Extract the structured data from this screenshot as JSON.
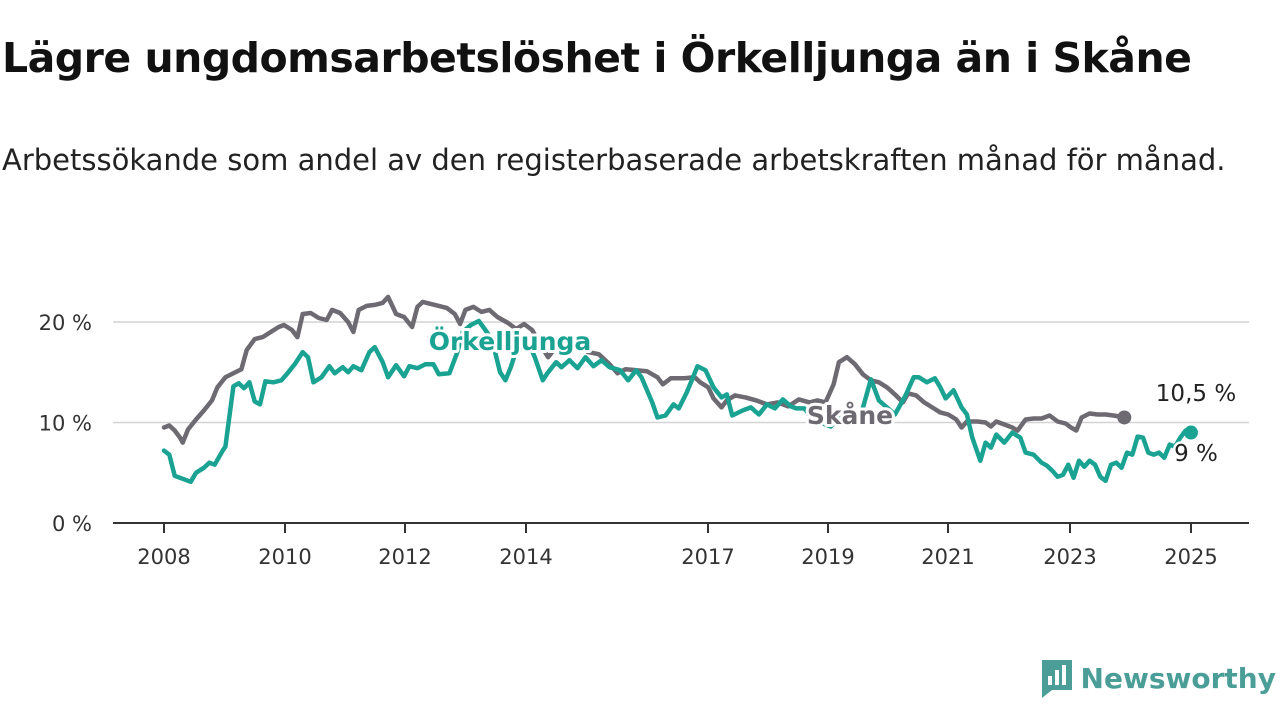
{
  "title": "Lägre ungdomsarbetslöshet i Örkelljunga än i Skåne",
  "subtitle": "Arbetssökande som andel av den registerbaserade arbetskraften månad för månad.",
  "brand": {
    "name": "Newsworthy",
    "icon": "newsworthy-logo-icon",
    "color": "#4a9e97"
  },
  "chart_data": {
    "type": "line",
    "title": "Lägre ungdomsarbetslöshet i Örkelljunga än i Skåne",
    "subtitle": "Arbetssökande som andel av den registerbaserade arbetskraften månad för månad.",
    "xlabel": "",
    "ylabel": "",
    "x_ticks": [
      "2008",
      "2010",
      "2012",
      "2014",
      "2017",
      "2019",
      "2021",
      "2023",
      "2025"
    ],
    "y_ticks": [
      "0 %",
      "10 %",
      "20 %"
    ],
    "ylim": [
      0,
      25
    ],
    "grid": true,
    "series": [
      {
        "name": "Skåne",
        "color": "#6e6a72",
        "end_label": "10,5 %",
        "points": [
          [
            2008.0,
            9.5
          ],
          [
            2008.1,
            9.7
          ],
          [
            2008.2,
            9.2
          ],
          [
            2008.3,
            8.5
          ],
          [
            2008.35,
            8.0
          ],
          [
            2008.45,
            9.3
          ],
          [
            2008.6,
            10.3
          ],
          [
            2008.75,
            11.2
          ],
          [
            2008.9,
            12.2
          ],
          [
            2009.0,
            13.5
          ],
          [
            2009.15,
            14.5
          ],
          [
            2009.3,
            14.9
          ],
          [
            2009.45,
            15.3
          ],
          [
            2009.55,
            17.2
          ],
          [
            2009.7,
            18.3
          ],
          [
            2009.85,
            18.5
          ],
          [
            2010.0,
            19.0
          ],
          [
            2010.15,
            19.5
          ],
          [
            2010.25,
            19.7
          ],
          [
            2010.4,
            19.2
          ],
          [
            2010.5,
            18.5
          ],
          [
            2010.6,
            20.8
          ],
          [
            2010.75,
            20.9
          ],
          [
            2010.9,
            20.4
          ],
          [
            2011.05,
            20.2
          ],
          [
            2011.15,
            21.2
          ],
          [
            2011.3,
            20.9
          ],
          [
            2011.45,
            20.0
          ],
          [
            2011.55,
            19.0
          ],
          [
            2011.65,
            21.2
          ],
          [
            2011.8,
            21.6
          ],
          [
            2011.95,
            21.7
          ],
          [
            2012.1,
            21.9
          ],
          [
            2012.2,
            22.5
          ],
          [
            2012.35,
            20.8
          ],
          [
            2012.5,
            20.5
          ],
          [
            2012.65,
            19.5
          ],
          [
            2012.75,
            21.5
          ],
          [
            2012.85,
            22.0
          ],
          [
            2013.0,
            21.8
          ],
          [
            2013.15,
            21.6
          ],
          [
            2013.3,
            21.4
          ],
          [
            2013.45,
            20.8
          ],
          [
            2013.55,
            19.8
          ],
          [
            2013.65,
            21.2
          ],
          [
            2013.8,
            21.5
          ],
          [
            2013.95,
            21.0
          ],
          [
            2014.1,
            21.2
          ],
          [
            2014.25,
            20.5
          ],
          [
            2014.45,
            19.9
          ],
          [
            2014.6,
            19.3
          ],
          [
            2014.75,
            19.8
          ],
          [
            2014.9,
            19.2
          ],
          [
            2015.05,
            17.8
          ],
          [
            2015.2,
            16.5
          ],
          [
            2015.35,
            17.5
          ],
          [
            2015.5,
            17.8
          ],
          [
            2015.65,
            17.3
          ],
          [
            2015.8,
            17.5
          ],
          [
            2015.95,
            17.0
          ],
          [
            2016.15,
            16.8
          ],
          [
            2016.35,
            15.8
          ],
          [
            2016.5,
            14.9
          ],
          [
            2016.65,
            15.3
          ],
          [
            2016.85,
            15.2
          ],
          [
            2017.05,
            15.1
          ],
          [
            2017.25,
            14.5
          ],
          [
            2017.35,
            13.8
          ],
          [
            2017.5,
            14.4
          ],
          [
            2017.75,
            14.4
          ],
          [
            2017.95,
            14.5
          ],
          [
            2018.05,
            14.0
          ],
          [
            2018.2,
            13.5
          ],
          [
            2018.3,
            12.4
          ],
          [
            2018.45,
            11.5
          ],
          [
            2018.55,
            12.2
          ],
          [
            2018.7,
            12.7
          ],
          [
            2018.9,
            12.5
          ],
          [
            2019.1,
            12.2
          ],
          [
            2019.3,
            11.8
          ],
          [
            2019.5,
            12.0
          ],
          [
            2019.7,
            11.6
          ],
          [
            2019.9,
            12.3
          ],
          [
            2020.1,
            12.0
          ],
          [
            2020.25,
            12.2
          ],
          [
            2020.4,
            12.0
          ],
          [
            2020.55,
            13.8
          ],
          [
            2020.65,
            16.0
          ],
          [
            2020.8,
            16.5
          ],
          [
            2020.95,
            15.8
          ],
          [
            2021.1,
            14.8
          ],
          [
            2021.25,
            14.2
          ],
          [
            2021.4,
            14.0
          ],
          [
            2021.55,
            13.5
          ],
          [
            2021.7,
            12.8
          ],
          [
            2021.85,
            12.0
          ],
          [
            2021.95,
            12.9
          ],
          [
            2022.1,
            12.7
          ],
          [
            2022.25,
            12.0
          ],
          [
            2022.4,
            11.5
          ],
          [
            2022.55,
            11.0
          ],
          [
            2022.7,
            10.8
          ],
          [
            2022.85,
            10.3
          ],
          [
            2022.95,
            9.5
          ],
          [
            2023.05,
            10.1
          ],
          [
            2023.25,
            10.1
          ],
          [
            2023.4,
            10.0
          ],
          [
            2023.5,
            9.6
          ],
          [
            2023.6,
            10.1
          ],
          [
            2023.75,
            9.8
          ],
          [
            2023.9,
            9.5
          ],
          [
            2024.0,
            9.2
          ],
          [
            2024.15,
            10.3
          ],
          [
            2024.3,
            10.4
          ],
          [
            2024.45,
            10.4
          ],
          [
            2024.6,
            10.7
          ],
          [
            2024.75,
            10.1
          ],
          [
            2024.9,
            9.9
          ],
          [
            2025.0,
            9.5
          ],
          [
            2025.1,
            9.2
          ],
          [
            2025.2,
            10.5
          ],
          [
            2025.35,
            10.9
          ],
          [
            2025.5,
            10.8
          ],
          [
            2025.65,
            10.8
          ],
          [
            2025.8,
            10.7
          ],
          [
            2026.0,
            10.5
          ]
        ]
      },
      {
        "name": "Örkelljunga",
        "color": "#1aa393",
        "end_label": "9 %",
        "points": [
          [
            2008.0,
            7.2
          ],
          [
            2008.1,
            6.8
          ],
          [
            2008.2,
            4.7
          ],
          [
            2008.35,
            4.4
          ],
          [
            2008.5,
            4.1
          ],
          [
            2008.6,
            5.0
          ],
          [
            2008.75,
            5.5
          ],
          [
            2008.85,
            6.0
          ],
          [
            2008.95,
            5.8
          ],
          [
            2009.1,
            7.2
          ],
          [
            2009.15,
            7.6
          ],
          [
            2009.3,
            13.6
          ],
          [
            2009.4,
            13.9
          ],
          [
            2009.5,
            13.4
          ],
          [
            2009.6,
            14.0
          ],
          [
            2009.7,
            12.1
          ],
          [
            2009.8,
            11.8
          ],
          [
            2009.9,
            14.1
          ],
          [
            2010.05,
            14.0
          ],
          [
            2010.2,
            14.2
          ],
          [
            2010.3,
            14.8
          ],
          [
            2010.45,
            15.8
          ],
          [
            2010.6,
            17.0
          ],
          [
            2010.7,
            16.5
          ],
          [
            2010.8,
            14.0
          ],
          [
            2010.95,
            14.5
          ],
          [
            2011.1,
            15.6
          ],
          [
            2011.2,
            14.9
          ],
          [
            2011.35,
            15.5
          ],
          [
            2011.45,
            15.0
          ],
          [
            2011.55,
            15.6
          ],
          [
            2011.7,
            15.2
          ],
          [
            2011.85,
            17.0
          ],
          [
            2011.95,
            17.5
          ],
          [
            2012.1,
            16.0
          ],
          [
            2012.2,
            14.5
          ],
          [
            2012.35,
            15.7
          ],
          [
            2012.5,
            14.6
          ],
          [
            2012.6,
            15.6
          ],
          [
            2012.75,
            15.4
          ],
          [
            2012.9,
            15.8
          ],
          [
            2013.05,
            15.8
          ],
          [
            2013.15,
            14.8
          ],
          [
            2013.35,
            14.9
          ],
          [
            2013.5,
            17.0
          ],
          [
            2013.6,
            19.0
          ],
          [
            2013.75,
            19.7
          ],
          [
            2013.9,
            20.1
          ],
          [
            2014.05,
            19.0
          ],
          [
            2014.15,
            18.2
          ],
          [
            2014.3,
            15.0
          ],
          [
            2014.4,
            14.2
          ],
          [
            2014.5,
            15.5
          ],
          [
            2014.65,
            18.0
          ],
          [
            2014.8,
            18.4
          ],
          [
            2014.95,
            16.5
          ],
          [
            2015.1,
            14.2
          ],
          [
            2015.2,
            15.0
          ],
          [
            2015.35,
            16.0
          ],
          [
            2015.45,
            15.5
          ],
          [
            2015.6,
            16.2
          ],
          [
            2015.75,
            15.4
          ],
          [
            2015.9,
            16.5
          ],
          [
            2016.05,
            15.6
          ],
          [
            2016.2,
            16.2
          ],
          [
            2016.35,
            15.5
          ],
          [
            2016.55,
            15.2
          ],
          [
            2016.7,
            14.2
          ],
          [
            2016.85,
            15.2
          ],
          [
            2016.95,
            14.5
          ],
          [
            2017.15,
            12.0
          ],
          [
            2017.25,
            10.5
          ],
          [
            2017.4,
            10.7
          ],
          [
            2017.55,
            11.8
          ],
          [
            2017.65,
            11.4
          ],
          [
            2017.8,
            13.0
          ],
          [
            2018.0,
            15.6
          ],
          [
            2018.15,
            15.2
          ],
          [
            2018.3,
            13.5
          ],
          [
            2018.45,
            12.5
          ],
          [
            2018.55,
            12.8
          ],
          [
            2018.65,
            10.7
          ],
          [
            2018.85,
            11.2
          ],
          [
            2019.0,
            11.5
          ],
          [
            2019.15,
            10.8
          ],
          [
            2019.3,
            11.8
          ],
          [
            2019.45,
            11.4
          ],
          [
            2019.6,
            12.3
          ],
          [
            2019.75,
            11.6
          ],
          [
            2019.85,
            11.4
          ],
          [
            2020.0,
            11.4
          ],
          [
            2020.15,
            10.5
          ],
          [
            2020.3,
            10.0
          ],
          [
            2020.5,
            9.6
          ],
          [
            2020.65,
            10.5
          ],
          [
            2020.8,
            9.8
          ],
          [
            2020.95,
            11.0
          ],
          [
            2021.05,
            10.5
          ],
          [
            2021.25,
            14.3
          ],
          [
            2021.4,
            12.2
          ],
          [
            2021.55,
            11.5
          ],
          [
            2021.7,
            10.8
          ],
          [
            2021.9,
            12.7
          ],
          [
            2022.05,
            14.5
          ],
          [
            2022.15,
            14.5
          ],
          [
            2022.3,
            14.0
          ],
          [
            2022.45,
            14.4
          ],
          [
            2022.55,
            13.5
          ],
          [
            2022.65,
            12.4
          ],
          [
            2022.8,
            13.2
          ],
          [
            2022.95,
            11.5
          ],
          [
            2023.05,
            10.8
          ],
          [
            2023.15,
            8.5
          ],
          [
            2023.3,
            6.2
          ],
          [
            2023.4,
            8.0
          ],
          [
            2023.5,
            7.5
          ],
          [
            2023.6,
            8.8
          ],
          [
            2023.75,
            8.0
          ],
          [
            2023.9,
            9.0
          ],
          [
            2024.05,
            8.5
          ],
          [
            2024.15,
            7.0
          ],
          [
            2024.3,
            6.8
          ],
          [
            2024.45,
            6.0
          ],
          [
            2024.55,
            5.7
          ],
          [
            2024.65,
            5.2
          ],
          [
            2024.75,
            4.6
          ],
          [
            2024.85,
            4.8
          ],
          [
            2024.95,
            5.8
          ],
          [
            2025.05,
            4.5
          ],
          [
            2025.15,
            6.2
          ],
          [
            2025.25,
            5.6
          ],
          [
            2025.35,
            6.2
          ],
          [
            2025.45,
            5.8
          ],
          [
            2025.55,
            4.6
          ],
          [
            2025.65,
            4.2
          ],
          [
            2025.75,
            5.8
          ],
          [
            2025.85,
            6.0
          ],
          [
            2025.95,
            5.5
          ],
          [
            2026.05,
            7.0
          ],
          [
            2026.15,
            6.8
          ],
          [
            2026.25,
            8.6
          ],
          [
            2026.35,
            8.5
          ],
          [
            2026.45,
            7.0
          ],
          [
            2026.55,
            6.8
          ],
          [
            2026.65,
            7.0
          ],
          [
            2026.75,
            6.5
          ],
          [
            2026.85,
            7.8
          ],
          [
            2026.95,
            7.6
          ],
          [
            2027.05,
            8.5
          ],
          [
            2027.15,
            9.2
          ],
          [
            2027.25,
            9.0
          ]
        ]
      }
    ]
  }
}
